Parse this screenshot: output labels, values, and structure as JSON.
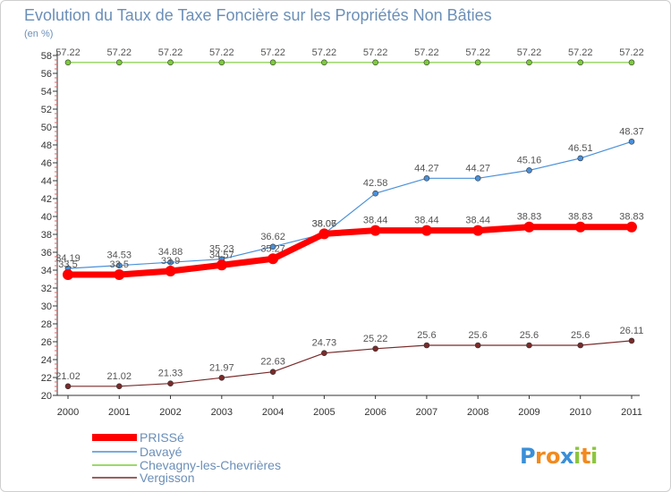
{
  "chart_data": {
    "type": "line",
    "title": "Evolution du Taux de Taxe Foncière sur les Propriétés Non Bâties",
    "unit_label": "(en %)",
    "x": [
      "2000",
      "2001",
      "2002",
      "2003",
      "2004",
      "2005",
      "2006",
      "2007",
      "2008",
      "2009",
      "2010",
      "2011"
    ],
    "ylim": [
      20,
      58
    ],
    "yticks": [
      20,
      22,
      24,
      26,
      28,
      30,
      32,
      34,
      36,
      38,
      40,
      42,
      44,
      46,
      48,
      50,
      52,
      54,
      56,
      58
    ],
    "grid": false,
    "legend_position": "bottom-left",
    "series": [
      {
        "name": "PRISSé",
        "color": "#ff0000",
        "values": [
          33.5,
          33.5,
          33.9,
          34.57,
          35.27,
          38.06,
          38.44,
          38.44,
          38.44,
          38.83,
          38.83,
          38.83
        ],
        "labels": [
          "33.5",
          "33.5",
          "33.9",
          "34.57",
          "35.27",
          "38.06",
          "38.44",
          "38.44",
          "38.44",
          "38.83",
          "38.83",
          "38.83"
        ]
      },
      {
        "name": "Davayé",
        "color": "#4a90d9",
        "values": [
          34.19,
          34.53,
          34.88,
          35.23,
          36.62,
          38.07,
          42.58,
          44.27,
          44.27,
          45.16,
          46.51,
          48.37
        ],
        "labels": [
          "34.19",
          "34.53",
          "34.88",
          "35.23",
          "36.62",
          "38.07",
          "42.58",
          "44.27",
          "44.27",
          "45.16",
          "46.51",
          "48.37"
        ]
      },
      {
        "name": "Chevagny-les-Chevrières",
        "color": "#7ccc3a",
        "values": [
          57.22,
          57.22,
          57.22,
          57.22,
          57.22,
          57.22,
          57.22,
          57.22,
          57.22,
          57.22,
          57.22,
          57.22
        ],
        "labels": [
          "57.22",
          "57.22",
          "57.22",
          "57.22",
          "57.22",
          "57.22",
          "57.22",
          "57.22",
          "57.22",
          "57.22",
          "57.22",
          "57.22"
        ]
      },
      {
        "name": "Vergisson",
        "color": "#7a2a2a",
        "values": [
          21.02,
          21.02,
          21.33,
          21.97,
          22.63,
          24.73,
          25.22,
          25.6,
          25.6,
          25.6,
          25.6,
          26.11
        ],
        "labels": [
          "21.02",
          "21.02",
          "21.33",
          "21.97",
          "22.63",
          "24.73",
          "25.22",
          "25.6",
          "25.6",
          "25.6",
          "25.6",
          "26.11"
        ]
      }
    ]
  },
  "brand": {
    "text": "Proxiti",
    "letters": [
      {
        "ch": "P",
        "color": "#3a8fd8"
      },
      {
        "ch": "r",
        "color": "#f28a1e"
      },
      {
        "ch": "o",
        "color": "#f28a1e"
      },
      {
        "ch": "x",
        "color": "#3a8fd8"
      },
      {
        "ch": "i",
        "color": "#8cc63f"
      },
      {
        "ch": "t",
        "color": "#f28a1e"
      },
      {
        "ch": "i",
        "color": "#8cc63f"
      }
    ]
  }
}
